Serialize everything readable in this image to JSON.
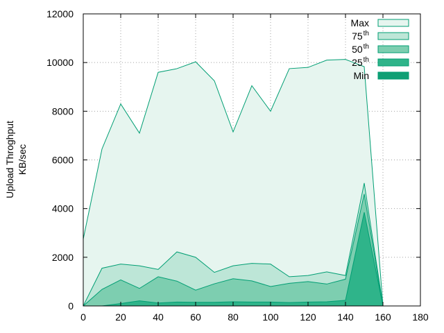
{
  "chart_data": {
    "type": "area",
    "title": "",
    "xlabel": "",
    "ylabel_lines": [
      "Upload Throghput",
      "KB/sec"
    ],
    "xlim": [
      0,
      180
    ],
    "ylim": [
      0,
      12000
    ],
    "x_ticks": [
      0,
      20,
      40,
      60,
      80,
      100,
      120,
      140,
      160,
      180
    ],
    "y_ticks": [
      0,
      2000,
      4000,
      6000,
      8000,
      10000,
      12000
    ],
    "grid": true,
    "legend_position": "top-right",
    "x": [
      0,
      10,
      20,
      30,
      40,
      50,
      60,
      70,
      80,
      90,
      100,
      110,
      120,
      130,
      140,
      150,
      160
    ],
    "series": [
      {
        "name": "Max",
        "legend_base": "Max",
        "legend_sup": "",
        "fill": "#e6f5ef",
        "values": [
          2750,
          6450,
          8300,
          7100,
          9600,
          9750,
          10030,
          9250,
          7150,
          9050,
          8000,
          9750,
          9800,
          10100,
          10130,
          9830,
          0
        ]
      },
      {
        "name": "75th",
        "legend_base": "75",
        "legend_sup": "th",
        "fill": "#bde6d7",
        "values": [
          0,
          1550,
          1720,
          1650,
          1500,
          2220,
          2000,
          1380,
          1650,
          1750,
          1720,
          1200,
          1250,
          1400,
          1250,
          5050,
          0
        ]
      },
      {
        "name": "50th",
        "legend_base": "50",
        "legend_sup": "th",
        "fill": "#7dceb0",
        "values": [
          0,
          680,
          1070,
          720,
          1200,
          1020,
          650,
          910,
          1120,
          1030,
          800,
          930,
          1000,
          900,
          1100,
          4600,
          0
        ]
      },
      {
        "name": "25th",
        "legend_base": "25",
        "legend_sup": "th",
        "fill": "#2fb48a",
        "values": [
          0,
          0,
          100,
          210,
          120,
          160,
          150,
          150,
          170,
          160,
          160,
          140,
          160,
          170,
          230,
          3850,
          0
        ]
      },
      {
        "name": "Min",
        "legend_base": "Min",
        "legend_sup": "",
        "fill": "#0f9f74",
        "values": [
          0,
          0,
          0,
          0,
          0,
          0,
          0,
          0,
          0,
          0,
          0,
          0,
          0,
          0,
          0,
          0,
          0
        ]
      }
    ],
    "colors": {
      "stroke": "#009e73",
      "grid": "#a0a0a0",
      "axis": "#000000"
    }
  }
}
